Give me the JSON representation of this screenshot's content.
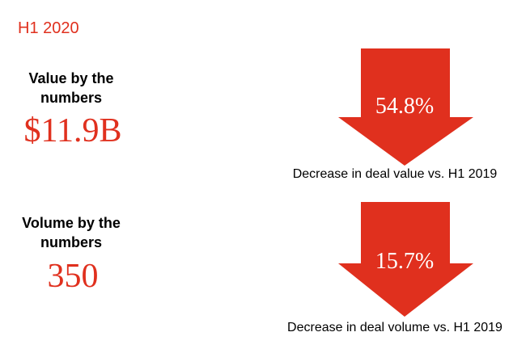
{
  "header": {
    "period": "H1 2020"
  },
  "metrics": [
    {
      "label_lines": [
        "Value by the",
        "numbers"
      ],
      "figure": "$11.9B",
      "change": "54.8%",
      "caption": "Decrease in deal value vs. H1 2019"
    },
    {
      "label_lines": [
        "Volume by the",
        "numbers"
      ],
      "figure": "350",
      "change": "15.7%",
      "caption": "Decrease in deal volume vs. H1 2019"
    }
  ]
}
